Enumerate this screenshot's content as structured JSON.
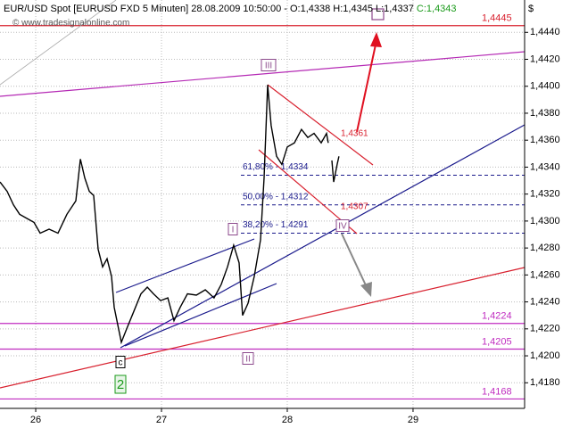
{
  "chart_data": {
    "type": "line",
    "title": "EUR/USD Spot [EURUSD FXD  5 Minuten] 28.08.2009 10:50:00 - O:1,4338 H:1,4345 L:1,4337",
    "close_label": "C:1,4343",
    "watermark": "© www.tradesignalonline.com",
    "axis_unit": "$",
    "color": "#000000",
    "x": [
      25.716,
      25.773,
      25.823,
      25.872,
      25.929,
      25.986,
      26.035,
      26.106,
      26.177,
      26.248,
      26.319,
      26.355,
      26.39,
      26.426,
      26.461,
      26.496,
      26.532,
      26.567,
      26.603,
      26.624,
      26.652,
      26.681,
      26.723,
      26.78,
      26.837,
      26.887,
      26.936,
      26.993,
      27.05,
      27.099,
      27.149,
      27.206,
      27.277,
      27.348,
      27.418,
      27.475,
      27.525,
      27.574,
      27.617,
      27.645,
      27.688,
      27.738,
      27.787,
      27.816,
      27.844,
      27.872,
      27.915,
      27.957,
      28.0,
      28.057,
      28.113,
      28.163,
      28.213,
      28.27,
      28.312,
      28.326,
      28.34,
      28.355,
      28.369,
      28.397,
      28.411
    ],
    "values": [
      1.4329,
      1.4322,
      1.4312,
      1.4305,
      1.4302,
      1.4299,
      1.4291,
      1.4294,
      1.4291,
      1.4305,
      1.4315,
      1.4346,
      1.4332,
      1.4322,
      1.4319,
      1.4279,
      1.4266,
      1.4272,
      1.4259,
      1.4236,
      1.4223,
      1.421,
      1.422,
      1.4233,
      1.4246,
      1.4251,
      1.4246,
      1.4241,
      1.4243,
      1.4226,
      1.4236,
      1.4246,
      1.4245,
      1.4249,
      1.4243,
      1.4253,
      1.4266,
      1.4282,
      1.4269,
      1.423,
      1.4239,
      1.4259,
      1.4286,
      1.4332,
      1.4401,
      1.4371,
      1.4348,
      1.4342,
      1.4355,
      1.4358,
      1.4368,
      1.4362,
      1.4365,
      1.4358,
      1.4365,
      1.4358,
      null,
      1.4345,
      1.4329,
      1.4342,
      1.4348
    ],
    "xlim": [
      25.716,
      29.887
    ],
    "ylim": [
      1.4161,
      1.4464
    ],
    "xticks": [
      26,
      27,
      28,
      29
    ],
    "yticks": [
      {
        "value": 1.418,
        "label": "1,4180"
      },
      {
        "value": 1.42,
        "label": "1,4200"
      },
      {
        "value": 1.422,
        "label": "1,4220"
      },
      {
        "value": 1.424,
        "label": "1,4240"
      },
      {
        "value": 1.426,
        "label": "1,4260"
      },
      {
        "value": 1.428,
        "label": "1,4280"
      },
      {
        "value": 1.43,
        "label": "1,4300"
      },
      {
        "value": 1.432,
        "label": "1,4320"
      },
      {
        "value": 1.434,
        "label": "1,4340"
      },
      {
        "value": 1.436,
        "label": "1,4360"
      },
      {
        "value": 1.438,
        "label": "1,4380"
      },
      {
        "value": 1.44,
        "label": "1,4400"
      },
      {
        "value": 1.442,
        "label": "1,4420"
      },
      {
        "value": 1.444,
        "label": "1,4440"
      }
    ],
    "grid": true,
    "levels": [
      {
        "value": 1.4445,
        "label": "1,4445",
        "color": "#d8202e"
      },
      {
        "value": 1.4224,
        "label": "1,4224",
        "color": "#c02cc0"
      },
      {
        "value": 1.4205,
        "label": "1,4205",
        "color": "#c02cc0"
      },
      {
        "value": 1.4168,
        "label": "1,4168",
        "color": "#c02cc0"
      }
    ],
    "fib_levels": [
      {
        "value": 1.4334,
        "label": "61,80% - 1,4334"
      },
      {
        "value": 1.4312,
        "label": "50,00% - 1,4312"
      },
      {
        "value": 1.4291,
        "label": "38,20% - 1,4291"
      }
    ],
    "price_notes": [
      "1,4361",
      "1,4307"
    ],
    "wave_labels": [
      "III",
      "I",
      "II",
      "IV",
      "c",
      "2"
    ]
  }
}
